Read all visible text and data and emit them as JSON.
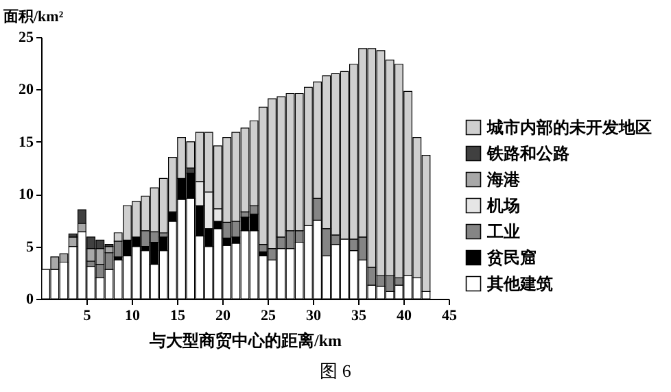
{
  "chart_data": {
    "type": "bar",
    "stacked": true,
    "xlabel": "与大型商贸中心的距离/km",
    "ylabel": "面积/km²",
    "x": [
      0.5,
      1.5,
      2.5,
      3.5,
      4.5,
      5.5,
      6.5,
      7.5,
      8.5,
      9.5,
      10.5,
      11.5,
      12.5,
      13.5,
      14.5,
      15.5,
      16.5,
      17.5,
      18.5,
      19.5,
      20.5,
      21.5,
      22.5,
      23.5,
      24.5,
      25.5,
      26.5,
      27.5,
      28.5,
      29.5,
      30.5,
      31.5,
      32.5,
      33.5,
      34.5,
      35.5,
      36.5,
      37.5,
      38.5,
      39.5,
      40.5,
      41.5,
      42.5
    ],
    "series": [
      {
        "name": "其他建筑",
        "color": "#ffffff",
        "values": [
          2.8,
          2.8,
          3.5,
          5.0,
          6.4,
          3.1,
          2.0,
          2.8,
          3.7,
          4.1,
          5.0,
          4.6,
          3.3,
          4.6,
          7.4,
          9.5,
          9.6,
          6.0,
          5.0,
          6.7,
          5.1,
          5.3,
          6.5,
          6.5,
          4.1,
          3.7,
          4.8,
          4.8,
          5.4,
          7.0,
          7.5,
          4.1,
          5.2,
          5.7,
          4.6,
          3.7,
          1.3,
          1.2,
          0.7,
          1.3,
          2.2,
          2.0,
          0.7
        ]
      },
      {
        "name": "贫民窟",
        "color": "#000000",
        "values": [
          null,
          null,
          null,
          null,
          null,
          null,
          null,
          null,
          0.3,
          1.5,
          0.9,
          0.4,
          2.1,
          1.3,
          0.9,
          2.0,
          2.4,
          2.9,
          1.7,
          0.7,
          0.7,
          0.6,
          1.3,
          1.6,
          0.4,
          null,
          null,
          null,
          null,
          null,
          null,
          null,
          null,
          null,
          null,
          null,
          null,
          null,
          null,
          null,
          null,
          null,
          null
        ]
      },
      {
        "name": "工业",
        "color": "#858585",
        "values": [
          null,
          null,
          null,
          null,
          null,
          0.5,
          1.3,
          1.6,
          1.5,
          null,
          null,
          1.5,
          1.0,
          0.4,
          null,
          null,
          null,
          null,
          null,
          null,
          1.5,
          1.5,
          0.5,
          0.8,
          0.7,
          1.1,
          1.1,
          1.7,
          1.1,
          null,
          2.1,
          2.6,
          0.9,
          null,
          1.1,
          2.2,
          1.7,
          1.0,
          1.5,
          0.7,
          null,
          null,
          null
        ]
      },
      {
        "name": "机场",
        "color": "#e6e6e6",
        "values": [
          null,
          null,
          null,
          null,
          null,
          null,
          null,
          null,
          null,
          null,
          null,
          null,
          null,
          null,
          null,
          null,
          null,
          2.3,
          3.5,
          1.2,
          null,
          null,
          null,
          null,
          null,
          null,
          null,
          null,
          null,
          null,
          null,
          null,
          null,
          null,
          null,
          null,
          null,
          null,
          null,
          null,
          null,
          null,
          null
        ]
      },
      {
        "name": "海港",
        "color": "#a8a8a8",
        "values": [
          null,
          1.2,
          0.8,
          0.9,
          0.8,
          1.2,
          1.5,
          0.6,
          null,
          null,
          null,
          null,
          null,
          null,
          null,
          null,
          null,
          null,
          null,
          null,
          null,
          null,
          null,
          null,
          null,
          null,
          null,
          null,
          null,
          null,
          null,
          null,
          null,
          null,
          null,
          null,
          null,
          null,
          null,
          null,
          null,
          null,
          null
        ]
      },
      {
        "name": "铁路和公路",
        "color": "#404040",
        "values": [
          null,
          null,
          null,
          0.3,
          1.3,
          1.1,
          0.8,
          0.2,
          null,
          null,
          null,
          null,
          null,
          null,
          null,
          null,
          0.5,
          null,
          null,
          null,
          null,
          null,
          null,
          null,
          null,
          null,
          null,
          null,
          null,
          null,
          null,
          null,
          null,
          null,
          null,
          null,
          null,
          null,
          null,
          null,
          null,
          null,
          null
        ]
      },
      {
        "name": "城市内部的未开发地区",
        "color": "#cfcfcf",
        "values": [
          null,
          null,
          null,
          null,
          null,
          null,
          null,
          null,
          0.8,
          3.3,
          3.4,
          3.3,
          4.2,
          5.2,
          5.2,
          3.9,
          2.5,
          4.7,
          5.7,
          6.0,
          8.1,
          8.5,
          8.0,
          8.1,
          13.1,
          14.3,
          13.4,
          13.1,
          13.1,
          13.2,
          11.1,
          14.6,
          15.4,
          16.0,
          16.7,
          18.0,
          20.9,
          21.5,
          20.6,
          20.4,
          17.6,
          13.4,
          13.0
        ]
      }
    ],
    "ylim": [
      0,
      25
    ],
    "yticks": [
      0,
      5,
      10,
      15,
      20,
      25
    ],
    "xlim": [
      0,
      45
    ],
    "xticks": [
      5,
      10,
      15,
      20,
      25,
      30,
      35,
      40,
      45
    ],
    "grid": false,
    "legend": "right",
    "annotations": [
      "图 6"
    ]
  }
}
